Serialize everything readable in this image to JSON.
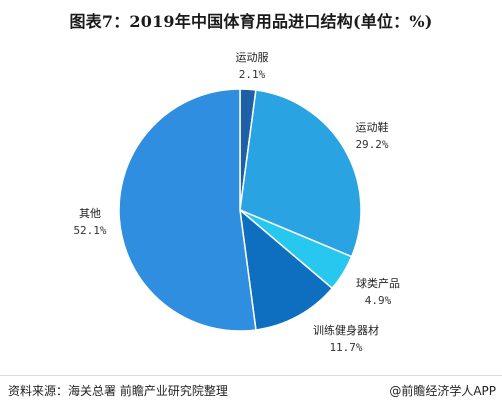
{
  "title": "图表7：2019年中国体育用品进口结构(单位：%)",
  "footer": {
    "source": "资料来源：海关总署 前瞻产业研究院整理",
    "credit": "@前瞻经济学人APP"
  },
  "chart_data": {
    "type": "pie",
    "title": "图表7：2019年中国体育用品进口结构(单位：%)",
    "unit": "%",
    "slices": [
      {
        "label": "运动服",
        "value": 2.1,
        "value_text": "2.1%",
        "color": "#1f5fa6"
      },
      {
        "label": "运动鞋",
        "value": 29.2,
        "value_text": "29.2%",
        "color": "#2aa3e3"
      },
      {
        "label": "球类产品",
        "value": 4.9,
        "value_text": "4.9%",
        "color": "#28c7f0"
      },
      {
        "label": "训练健身器材",
        "value": 11.7,
        "value_text": "11.7%",
        "color": "#0e6fc0"
      },
      {
        "label": "其他",
        "value": 52.1,
        "value_text": "52.1%",
        "color": "#2f8ee0"
      }
    ]
  }
}
